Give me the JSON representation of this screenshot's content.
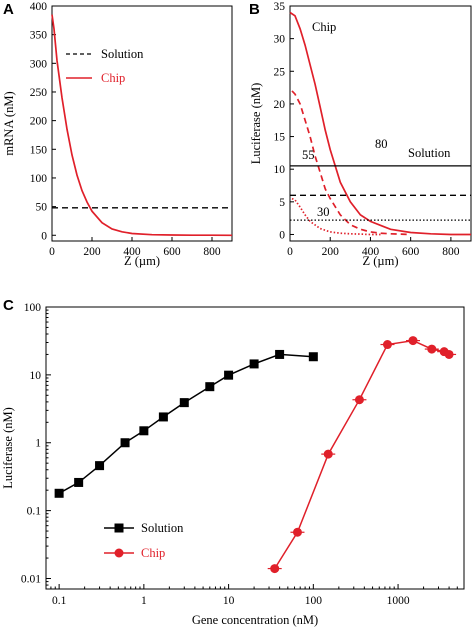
{
  "colors": {
    "black": "#000000",
    "red": "#e0202a"
  },
  "chart_data": [
    {
      "panel": "A",
      "type": "line",
      "xlabel": "Z (µm)",
      "ylabel": "mRNA (nM)",
      "xlim": [
        0,
        900
      ],
      "ylim": [
        -10,
        400
      ],
      "xticks": [
        0,
        200,
        400,
        600,
        800
      ],
      "yticks": [
        0,
        50,
        100,
        150,
        200,
        250,
        300,
        350,
        400
      ],
      "legend_position": "right",
      "series": [
        {
          "name": "Solution",
          "style": "dashed",
          "color": "black",
          "x": [
            0,
            900
          ],
          "y": [
            48,
            48
          ]
        },
        {
          "name": "Chip",
          "style": "solid",
          "color": "red",
          "x": [
            0,
            10,
            25,
            50,
            75,
            100,
            125,
            150,
            175,
            200,
            250,
            300,
            350,
            400,
            500,
            600,
            700,
            800,
            900
          ],
          "y": [
            385,
            360,
            305,
            240,
            185,
            140,
            105,
            78,
            58,
            42,
            22,
            11,
            6,
            3,
            1,
            0.5,
            0.2,
            0.1,
            0
          ]
        }
      ]
    },
    {
      "panel": "B",
      "type": "line",
      "xlabel": "Z (µm)",
      "ylabel": "Luciferase (nM)",
      "xlim": [
        0,
        900
      ],
      "ylim": [
        -1,
        35
      ],
      "xticks": [
        0,
        200,
        400,
        600,
        800
      ],
      "yticks": [
        0,
        5,
        10,
        15,
        20,
        25,
        30,
        35
      ],
      "series_label": "Chip",
      "solution_label": "Solution",
      "annotations": [
        "80",
        "55",
        "30"
      ],
      "series": [
        {
          "name": "",
          "label": "80",
          "style": "solid",
          "color": "red",
          "x": [
            0,
            25,
            50,
            75,
            100,
            125,
            150,
            175,
            200,
            250,
            300,
            350,
            400,
            500,
            600,
            700,
            800,
            900
          ],
          "y": [
            34,
            33.5,
            31.5,
            29,
            26,
            23,
            19.5,
            16,
            13,
            8,
            5,
            3,
            2,
            0.8,
            0.3,
            0.1,
            0,
            0
          ]
        },
        {
          "name": "",
          "label": "55",
          "style": "dashed",
          "color": "red",
          "x": [
            10,
            25,
            50,
            75,
            100,
            125,
            150,
            175,
            200,
            250,
            300,
            350,
            400,
            450,
            500,
            600
          ],
          "y": [
            22,
            21.5,
            20,
            17.5,
            15,
            12,
            9.5,
            7,
            5.5,
            3,
            1.5,
            0.8,
            0.4,
            0.2,
            0.1,
            0
          ]
        },
        {
          "name": "",
          "label": "30",
          "style": "dotted",
          "color": "red",
          "x": [
            10,
            25,
            50,
            75,
            100,
            150,
            200,
            250,
            300,
            350,
            400,
            450
          ],
          "y": [
            5.5,
            5.3,
            4.2,
            3,
            2,
            0.9,
            0.4,
            0.2,
            0.1,
            0.05,
            0,
            0
          ]
        },
        {
          "name": "",
          "label": "80",
          "style": "solid",
          "color": "black",
          "x": [
            0,
            900
          ],
          "y": [
            10.5,
            10.5
          ]
        },
        {
          "name": "",
          "label": "55",
          "style": "dashed",
          "color": "black",
          "x": [
            0,
            900
          ],
          "y": [
            6,
            6
          ]
        },
        {
          "name": "",
          "label": "30",
          "style": "dotted",
          "color": "black",
          "x": [
            0,
            900
          ],
          "y": [
            2.2,
            2.2
          ]
        }
      ]
    },
    {
      "panel": "C",
      "type": "scatter",
      "xscale": "log",
      "yscale": "log",
      "xlabel": "Gene concentration (nM)",
      "ylabel": "Luciferase (nM)",
      "xlim": [
        0.07,
        6000
      ],
      "ylim": [
        0.007,
        100
      ],
      "xticks": [
        0.1,
        1,
        10,
        100,
        1000
      ],
      "xticklabels": [
        "0.1",
        "1",
        "10",
        "100",
        "1000"
      ],
      "yticks": [
        0.01,
        0.1,
        1,
        10,
        100
      ],
      "yticklabels": [
        "0.01",
        "0.1",
        "1",
        "10",
        "100"
      ],
      "legend_position": "bottom-left",
      "series": [
        {
          "name": "Solution",
          "marker": "square",
          "color": "black",
          "x": [
            0.1,
            0.17,
            0.3,
            0.6,
            1.0,
            1.7,
            3.0,
            6.0,
            10,
            20,
            40,
            100
          ],
          "y": [
            0.18,
            0.26,
            0.46,
            1.0,
            1.5,
            2.4,
            3.9,
            6.7,
            9.9,
            14.5,
            20,
            18.5
          ]
        },
        {
          "name": "Chip",
          "marker": "circle",
          "color": "red",
          "x": [
            35,
            65,
            150,
            350,
            750,
            1500,
            2500,
            3500,
            4000
          ],
          "y": [
            0.014,
            0.048,
            0.68,
            4.3,
            28,
            32,
            24,
            22,
            20
          ]
        }
      ]
    }
  ]
}
